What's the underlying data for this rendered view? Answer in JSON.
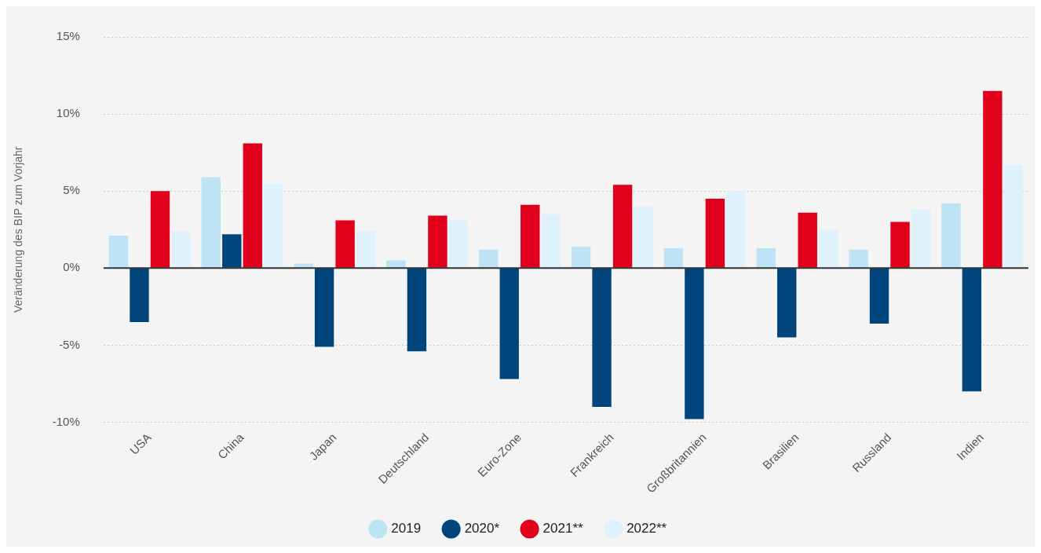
{
  "chart_data": {
    "type": "bar",
    "ylabel": "Veränderung des BIP zum Vorjahr",
    "categories": [
      "USA",
      "China",
      "Japan",
      "Deutschland",
      "Euro-Zone",
      "Frankreich",
      "Großbritannien",
      "Brasilien",
      "Russland",
      "Indien"
    ],
    "series": [
      {
        "name": "2019",
        "color": "#bde3f5",
        "values": [
          2.1,
          5.9,
          0.3,
          0.5,
          1.2,
          1.4,
          1.3,
          1.3,
          1.2,
          4.2
        ]
      },
      {
        "name": "2020*",
        "color": "#00457c",
        "values": [
          -3.5,
          2.2,
          -5.1,
          -5.4,
          -7.2,
          -9.0,
          -9.8,
          -4.5,
          -3.6,
          -8.0
        ]
      },
      {
        "name": "2021**",
        "color": "#e0001b",
        "values": [
          5.0,
          8.1,
          3.1,
          3.4,
          4.1,
          5.4,
          4.5,
          3.6,
          3.0,
          11.5
        ]
      },
      {
        "name": "2022**",
        "color": "#dff1fa",
        "values": [
          2.4,
          5.5,
          2.4,
          3.1,
          3.5,
          4.0,
          5.0,
          2.5,
          3.8,
          6.7
        ]
      }
    ],
    "ylim": [
      -10,
      15
    ],
    "yticks": [
      {
        "value": -10,
        "label": "-10%"
      },
      {
        "value": -5,
        "label": "-5%"
      },
      {
        "value": 0,
        "label": "0%"
      },
      {
        "value": 5,
        "label": "5%"
      },
      {
        "value": 10,
        "label": "10%"
      },
      {
        "value": 15,
        "label": "15%"
      }
    ],
    "ref_lines": [
      {
        "axis": "y",
        "value": 0,
        "color": "#333333"
      }
    ],
    "grid": "y",
    "legend": "bottom"
  }
}
